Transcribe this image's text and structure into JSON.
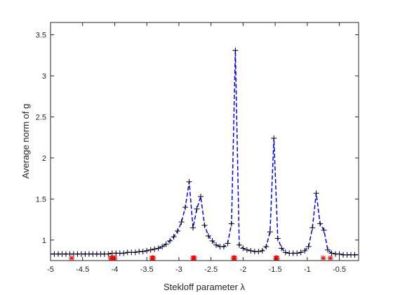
{
  "chart_data": {
    "type": "line",
    "xlabel": "Stekloff parameter λ",
    "ylabel": "Average norm of g",
    "xlim": [
      -5,
      -0.2
    ],
    "ylim": [
      0.75,
      3.65
    ],
    "grid": false,
    "box": true,
    "x_ticks": [
      "-5",
      "-4.5",
      "-4",
      "-3.5",
      "-3",
      "-2.5",
      "-2",
      "-1.5",
      "-1",
      "-0.5"
    ],
    "x_tick_values": [
      -5,
      -4.5,
      -4,
      -3.5,
      -3,
      -2.5,
      -2,
      -1.5,
      -1,
      -0.5
    ],
    "y_ticks": [
      "1",
      "1.5",
      "2",
      "2.5",
      "3",
      "3.5"
    ],
    "y_tick_values": [
      1,
      1.5,
      2,
      2.5,
      3,
      3.5
    ],
    "series": [
      {
        "style": "dashed line with plus markers",
        "color": "#0000ff",
        "marker_color": "#000000",
        "x": [
          -5.0,
          -4.94,
          -4.88,
          -4.82,
          -4.76,
          -4.7,
          -4.64,
          -4.58,
          -4.52,
          -4.46,
          -4.4,
          -4.34,
          -4.28,
          -4.22,
          -4.16,
          -4.1,
          -4.04,
          -3.98,
          -3.92,
          -3.86,
          -3.8,
          -3.74,
          -3.68,
          -3.62,
          -3.56,
          -3.5,
          -3.44,
          -3.38,
          -3.32,
          -3.26,
          -3.2,
          -3.14,
          -3.08,
          -3.02,
          -2.96,
          -2.9,
          -2.84,
          -2.78,
          -2.72,
          -2.66,
          -2.6,
          -2.54,
          -2.48,
          -2.42,
          -2.36,
          -2.3,
          -2.24,
          -2.18,
          -2.12,
          -2.06,
          -2.0,
          -1.94,
          -1.88,
          -1.82,
          -1.76,
          -1.7,
          -1.64,
          -1.58,
          -1.52,
          -1.46,
          -1.4,
          -1.34,
          -1.28,
          -1.22,
          -1.16,
          -1.1,
          -1.04,
          -0.98,
          -0.92,
          -0.86,
          -0.8,
          -0.74,
          -0.68,
          -0.62,
          -0.56,
          -0.5,
          -0.44,
          -0.38,
          -0.32,
          -0.26,
          -0.2
        ],
        "y": [
          0.83,
          0.83,
          0.83,
          0.83,
          0.83,
          0.83,
          0.83,
          0.83,
          0.83,
          0.83,
          0.83,
          0.83,
          0.83,
          0.83,
          0.83,
          0.83,
          0.84,
          0.84,
          0.84,
          0.84,
          0.85,
          0.85,
          0.85,
          0.86,
          0.86,
          0.87,
          0.88,
          0.89,
          0.9,
          0.92,
          0.95,
          0.99,
          1.04,
          1.11,
          1.22,
          1.4,
          1.71,
          1.15,
          1.38,
          1.53,
          1.18,
          1.05,
          0.99,
          0.94,
          0.92,
          0.92,
          0.96,
          1.2,
          3.31,
          0.94,
          0.9,
          0.88,
          0.87,
          0.86,
          0.86,
          0.87,
          0.92,
          1.1,
          2.24,
          1.02,
          0.9,
          0.85,
          0.84,
          0.84,
          0.84,
          0.85,
          0.87,
          0.92,
          1.15,
          1.57,
          1.2,
          1.12,
          0.88,
          0.84,
          0.83,
          0.83,
          0.82,
          0.82,
          0.82,
          0.82,
          0.82
        ]
      },
      {
        "style": "asterisk markers",
        "color": "#ff0000",
        "x": [
          -4.67,
          -4.06,
          -4.05,
          -4.03,
          -4.02,
          -4.0,
          -3.42,
          -3.41,
          -3.4,
          -2.78,
          -2.77,
          -2.76,
          -2.15,
          -2.14,
          -2.13,
          -1.49,
          -1.48,
          -1.47,
          -0.75,
          -0.64
        ],
        "y": [
          0.78,
          0.78,
          0.78,
          0.78,
          0.78,
          0.78,
          0.78,
          0.78,
          0.78,
          0.78,
          0.78,
          0.78,
          0.78,
          0.78,
          0.78,
          0.78,
          0.78,
          0.78,
          0.78,
          0.78
        ]
      }
    ]
  }
}
